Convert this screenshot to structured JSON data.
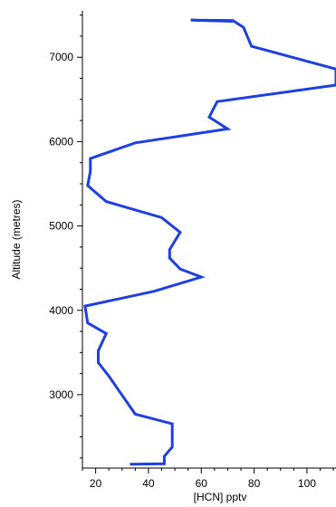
{
  "chart_data": {
    "type": "line",
    "title": "",
    "xlabel": "[HCN] pptv",
    "ylabel": "Altitude (metres)",
    "xlim": [
      15,
      111
    ],
    "ylim": [
      2130,
      7550
    ],
    "x_ticks": [
      20,
      40,
      60,
      80,
      100
    ],
    "y_ticks": [
      3000,
      4000,
      5000,
      6000,
      7000
    ],
    "grid": false,
    "legend": "none",
    "line_color": "#1f3fe0",
    "series": [
      {
        "x": [
          33,
          46,
          46,
          49,
          49,
          35,
          29,
          25,
          21,
          21,
          24,
          17,
          16,
          42,
          60,
          52,
          48,
          48,
          52,
          45,
          24,
          17,
          18,
          18,
          35,
          70,
          63,
          66,
          111,
          111,
          95,
          79,
          77,
          76,
          72,
          56,
          72
        ],
        "y": [
          2175,
          2180,
          2270,
          2380,
          2655,
          2770,
          3040,
          3220,
          3380,
          3520,
          3725,
          3850,
          4050,
          4225,
          4395,
          4490,
          4620,
          4720,
          4925,
          5100,
          5290,
          5480,
          5650,
          5800,
          5985,
          6150,
          6290,
          6475,
          6670,
          6860,
          6995,
          7130,
          7280,
          7355,
          7435,
          7440,
          7425
        ]
      }
    ]
  }
}
